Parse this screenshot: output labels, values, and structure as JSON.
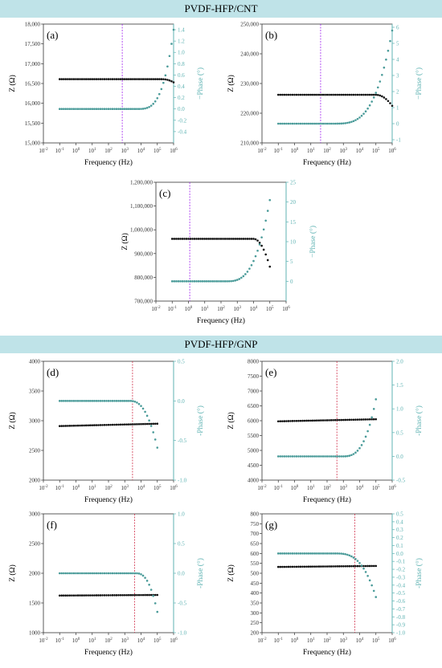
{
  "banners": {
    "cnt": "PVDF-HFP/CNT",
    "gnp": "PVDF-HFP/GNP"
  },
  "colors": {
    "z_series": "#111111",
    "phase_series": "#4a9b99",
    "phase_axis": "#5fb3b3",
    "guide_cnt": "#a020f0",
    "guide_gnp": "#d0304a"
  },
  "chart_data": [
    {
      "id": "a",
      "panel_label": "(a)",
      "type": "scatter",
      "xlabel": "Frequency (Hz)",
      "ylabel": "Z (Ω)",
      "y2label": "−Phase (°)",
      "xscale": "log",
      "xlim_exp": [
        -2,
        6
      ],
      "ylim": [
        15000,
        18000
      ],
      "yticks": [
        15000,
        15500,
        16000,
        16500,
        17000,
        17500,
        18000
      ],
      "ytick_labels": [
        "15,000",
        "15,500",
        "16,000",
        "16,500",
        "17,000",
        "17,500",
        "18,000"
      ],
      "y2lim": [
        -0.6,
        1.5
      ],
      "y2ticks": [
        -0.4,
        -0.2,
        0.0,
        0.2,
        0.4,
        0.6,
        0.8,
        1.0,
        1.2,
        1.4
      ],
      "y2tick_labels": [
        "-0.4",
        "-0.2",
        "0.0",
        "0.2",
        "0.4",
        "0.6",
        "0.8",
        "1.0",
        "1.2",
        "1.4"
      ],
      "guide_line_hz": 700,
      "z_model": {
        "z0": 16610,
        "z_end": 16530,
        "drop_start_hz": 200000
      },
      "phase_model": {
        "p0": 0.0,
        "p_end": 1.4,
        "rise_start_hz": 5000,
        "curve": 3.5
      },
      "freq_range_hz": [
        0.1,
        1000000
      ],
      "points_per_decade": 8
    },
    {
      "id": "b",
      "panel_label": "(b)",
      "type": "scatter",
      "xlabel": "Frequency (Hz)",
      "ylabel": "Z (Ω)",
      "y2label": "−Phase (°)",
      "xscale": "log",
      "xlim_exp": [
        -2,
        6
      ],
      "ylim": [
        210000,
        250000
      ],
      "yticks": [
        210000,
        220000,
        230000,
        240000,
        250000
      ],
      "ytick_labels": [
        "210,000",
        "220,000",
        "230,000",
        "240,000",
        "250,000"
      ],
      "y2lim": [
        -1.2,
        6.2
      ],
      "y2ticks": [
        -1,
        0,
        1,
        2,
        3,
        4,
        5,
        6
      ],
      "y2tick_labels": [
        "-1",
        "0",
        "1",
        "2",
        "3",
        "4",
        "5",
        "6"
      ],
      "guide_line_hz": 40,
      "z_model": {
        "z0": 226200,
        "z_end": 222500,
        "drop_start_hz": 100000
      },
      "phase_model": {
        "p0": 0.0,
        "p_end": 5.8,
        "rise_start_hz": 200,
        "curve": 3.5
      },
      "freq_range_hz": [
        0.1,
        1000000
      ],
      "points_per_decade": 8
    },
    {
      "id": "c",
      "panel_label": "(c)",
      "type": "scatter",
      "xlabel": "Frequency (Hz)",
      "ylabel": "Z (Ω)",
      "y2label": "−Phase (°)",
      "xscale": "log",
      "xlim_exp": [
        -2,
        6
      ],
      "ylim": [
        700000,
        1200000
      ],
      "yticks": [
        700000,
        800000,
        900000,
        1000000,
        1100000,
        1200000
      ],
      "ytick_labels": [
        "700,000",
        "800,000",
        "900,000",
        "1,000,000",
        "1,100,000",
        "1,200,000"
      ],
      "y2lim": [
        -5,
        25
      ],
      "y2ticks": [
        0,
        5,
        10,
        15,
        20,
        25
      ],
      "y2tick_labels": [
        "0",
        "5",
        "10",
        "15",
        "20",
        "25"
      ],
      "guide_line_hz": 1.2,
      "z_model": {
        "z0": 962000,
        "z_end": 845000,
        "drop_start_hz": 10000
      },
      "phase_model": {
        "p0": 0.0,
        "p_end": 20.5,
        "rise_start_hz": 200,
        "curve": 3.0
      },
      "freq_range_hz": [
        0.1,
        100000
      ],
      "points_per_decade": 8
    },
    {
      "id": "d",
      "panel_label": "(d)",
      "type": "scatter",
      "xlabel": "Frequency (Hz)",
      "ylabel": "Z (Ω)",
      "y2label": "-Phase (°)",
      "xscale": "log",
      "xlim_exp": [
        -2,
        6
      ],
      "ylim": [
        2000,
        4000
      ],
      "yticks": [
        2000,
        2500,
        3000,
        3500,
        4000
      ],
      "ytick_labels": [
        "2000",
        "2500",
        "3000",
        "3500",
        "4000"
      ],
      "y2lim": [
        -1.0,
        0.5
      ],
      "y2ticks": [
        -1.0,
        -0.5,
        0.0,
        0.5
      ],
      "y2tick_labels": [
        "-1.0",
        "-0.5",
        "0.0",
        "0.5"
      ],
      "guide_line_hz": 3000,
      "z_model": {
        "z0": 2910,
        "z_end": 2950,
        "drop_start_hz": 0
      },
      "phase_model": {
        "p0": 0.0,
        "p_end": -0.59,
        "rise_start_hz": 2000,
        "curve": 2.5
      },
      "freq_range_hz": [
        0.1,
        100000
      ],
      "points_per_decade": 8
    },
    {
      "id": "e",
      "panel_label": "(e)",
      "type": "scatter",
      "xlabel": "Frequency (Hz)",
      "ylabel": "Z (Ω)",
      "y2label": "-Phase (°)",
      "xscale": "log",
      "xlim_exp": [
        -2,
        6
      ],
      "ylim": [
        4000,
        8000
      ],
      "yticks": [
        4000,
        4500,
        5000,
        5500,
        6000,
        6500,
        7000,
        7500,
        8000
      ],
      "ytick_labels": [
        "4000",
        "4500",
        "5000",
        "5500",
        "6000",
        "6500",
        "7000",
        "7500",
        "8000"
      ],
      "y2lim": [
        -0.5,
        2.0
      ],
      "y2ticks": [
        -0.5,
        0.0,
        0.5,
        1.0,
        1.5,
        2.0
      ],
      "y2tick_labels": [
        "-0.5",
        "0.0",
        "0.5",
        "1.0",
        "1.5",
        "2.0"
      ],
      "guide_line_hz": 400,
      "z_model": {
        "z0": 5980,
        "z_end": 6050,
        "drop_start_hz": 0
      },
      "phase_model": {
        "p0": 0.0,
        "p_end": 1.2,
        "rise_start_hz": 800,
        "curve": 3.0
      },
      "freq_range_hz": [
        0.1,
        100000
      ],
      "points_per_decade": 8
    },
    {
      "id": "f",
      "panel_label": "(f)",
      "type": "scatter",
      "xlabel": "Frequency (Hz)",
      "ylabel": "Z (Ω)",
      "y2label": "-Phase (°)",
      "xscale": "log",
      "xlim_exp": [
        -2,
        6
      ],
      "ylim": [
        1000,
        3000
      ],
      "yticks": [
        1000,
        1500,
        2000,
        2500,
        3000
      ],
      "ytick_labels": [
        "1000",
        "1500",
        "2000",
        "2500",
        "3000"
      ],
      "y2lim": [
        -1.0,
        1.0
      ],
      "y2ticks": [
        -1.0,
        -0.5,
        0.0,
        0.5,
        1.0
      ],
      "y2tick_labels": [
        "-1.0",
        "-0.5",
        "0.0",
        "0.5",
        "1.0"
      ],
      "guide_line_hz": 4000,
      "z_model": {
        "z0": 1625,
        "z_end": 1635,
        "drop_start_hz": 0
      },
      "phase_model": {
        "p0": 0.0,
        "p_end": -0.65,
        "rise_start_hz": 5000,
        "curve": 2.5
      },
      "freq_range_hz": [
        0.1,
        100000
      ],
      "points_per_decade": 8
    },
    {
      "id": "g",
      "panel_label": "(g)",
      "type": "scatter",
      "xlabel": "Frequency (Hz)",
      "ylabel": "Z (Ω)",
      "y2label": "-Phase (°)",
      "xscale": "log",
      "xlim_exp": [
        -2,
        6
      ],
      "ylim": [
        200,
        800
      ],
      "yticks": [
        200,
        250,
        300,
        350,
        400,
        450,
        500,
        550,
        600,
        650,
        700,
        750,
        800
      ],
      "ytick_labels": [
        "200",
        "250",
        "300",
        "350",
        "400",
        "450",
        "500",
        "550",
        "600",
        "650",
        "700",
        "750",
        "800"
      ],
      "y2lim": [
        -1.0,
        0.5
      ],
      "y2ticks": [
        -1.0,
        -0.9,
        -0.8,
        -0.7,
        -0.6,
        -0.5,
        -0.4,
        -0.3,
        -0.2,
        -0.1,
        0.0,
        0.1,
        0.2,
        0.3,
        0.4,
        0.5
      ],
      "y2tick_labels": [
        "-1.0",
        "-0.9",
        "-0.8",
        "-0.7",
        "-0.6",
        "-0.5",
        "-0.4",
        "-0.3",
        "-0.2",
        "-0.1",
        "0.0",
        "0.1",
        "0.2",
        "0.3",
        "0.4",
        "0.5"
      ],
      "guide_line_hz": 5000,
      "z_model": {
        "z0": 532,
        "z_end": 537,
        "drop_start_hz": 0
      },
      "phase_model": {
        "p0": 0.0,
        "p_end": -0.55,
        "rise_start_hz": 300,
        "curve": 3.0
      },
      "freq_range_hz": [
        0.1,
        100000
      ],
      "points_per_decade": 8
    }
  ]
}
